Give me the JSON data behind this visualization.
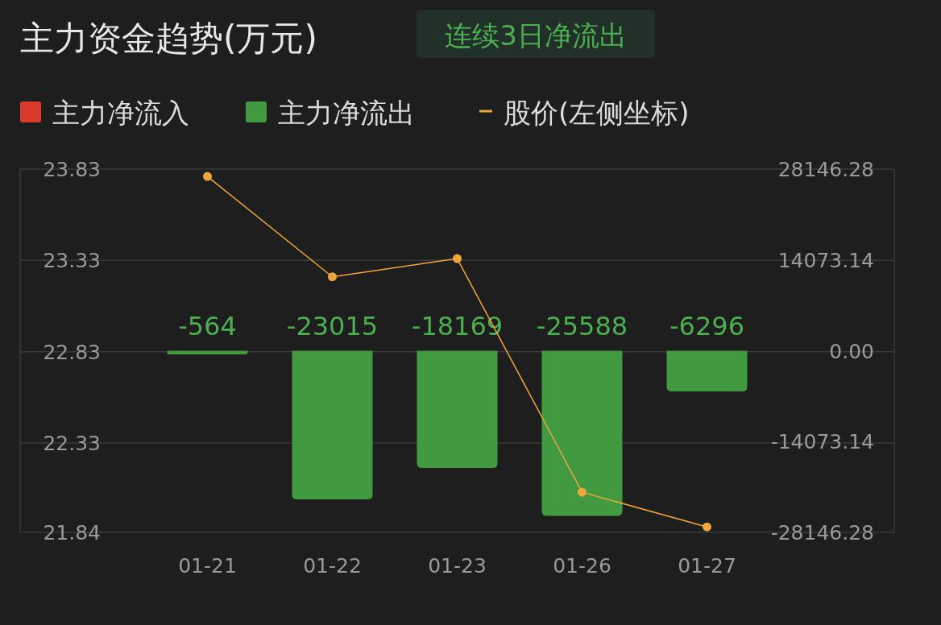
{
  "chart_data": {
    "type": "bar",
    "title": "主力资金趋势(万元)",
    "subtitle": "连续3日净流出",
    "categories": [
      "01-21",
      "01-22",
      "01-23",
      "01-26",
      "01-27"
    ],
    "series": [
      {
        "name": "主力净流入",
        "color": "#d93a2b",
        "axis": "y2",
        "values": [
          null,
          null,
          null,
          null,
          null
        ]
      },
      {
        "name": "主力净流出",
        "color": "#419a40",
        "axis": "y2",
        "values": [
          -564,
          -23015,
          -18169,
          -25588,
          -6296
        ],
        "value_labels": [
          "-564",
          "-23015",
          "-18169",
          "-25588",
          "-6296"
        ]
      },
      {
        "name": "股价(左侧坐标)",
        "type": "line",
        "color": "#f0a63a",
        "marker": "circle",
        "values": [
          23.79,
          23.24,
          23.34,
          22.06,
          21.87
        ]
      }
    ],
    "ylim": [
      21.84,
      23.83
    ],
    "yticks": [
      21.84,
      22.33,
      22.83,
      23.33,
      23.83
    ],
    "y2lim": [
      -28146.28,
      28146.28
    ],
    "y2ticks": [
      -28146.28,
      -14073.14,
      {
        "value": 0,
        "label": "0.00"
      },
      14073.14,
      28146.28
    ],
    "grid": "y",
    "legend": "top left"
  }
}
